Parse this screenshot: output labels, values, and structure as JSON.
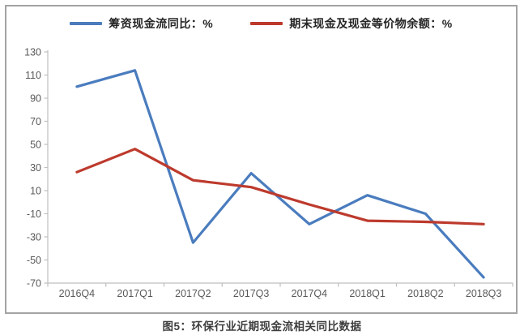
{
  "legend": {
    "items": [
      {
        "label": "筹资现金流同比：%"
      },
      {
        "label": "期末现金及现金等价物余额：%"
      }
    ]
  },
  "caption": "图5：环保行业近期现金流相关同比数据",
  "chart_data": {
    "type": "line",
    "title": "图5：环保行业近期现金流相关同比数据",
    "categories": [
      "2016Q4",
      "2017Q1",
      "2017Q2",
      "2017Q3",
      "2017Q4",
      "2018Q1",
      "2018Q2",
      "2018Q3"
    ],
    "series": [
      {
        "name": "筹资现金流同比：%",
        "color": "#4a7cbe",
        "values": [
          100,
          114,
          -35,
          25,
          -19,
          6,
          -10,
          -65
        ]
      },
      {
        "name": "期末现金及现金等价物余额：%",
        "color": "#bd3a2d",
        "values": [
          26,
          46,
          19,
          13,
          -2,
          -16,
          -17,
          -19
        ]
      }
    ],
    "xlabel": "",
    "ylabel": "",
    "ylim": [
      -70,
      130
    ],
    "ytick_step": 20,
    "grid": false,
    "legend_position": "top",
    "axis_color": "#bfbfbf",
    "tick_label_color": "#595959"
  }
}
